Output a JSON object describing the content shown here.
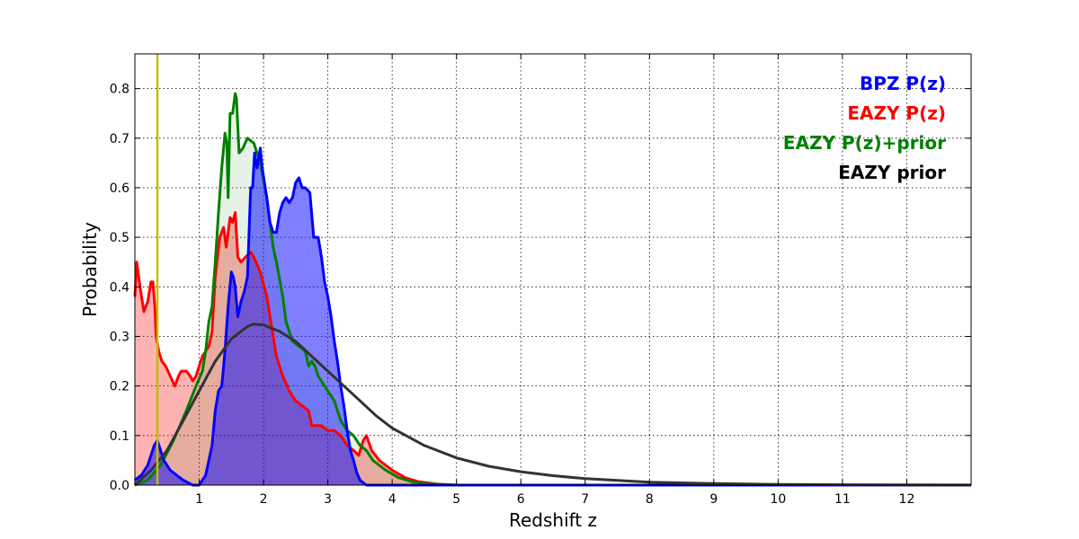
{
  "chart_data": {
    "type": "area",
    "title": "",
    "xlabel": "Redshift z",
    "ylabel": "Probability",
    "xlim": [
      0,
      13
    ],
    "ylim": [
      0,
      0.87
    ],
    "x_ticks": [
      1,
      2,
      3,
      4,
      5,
      6,
      7,
      8,
      9,
      10,
      11,
      12
    ],
    "y_ticks": [
      0.0,
      0.1,
      0.2,
      0.3,
      0.4,
      0.5,
      0.6,
      0.7,
      0.8
    ],
    "grid": true,
    "legend_position": "top-right",
    "vertical_line": {
      "x": 0.35,
      "color": "#bfbf00"
    },
    "series": [
      {
        "name": "EAZY P(z)",
        "color": "#ff0000",
        "fill": "rgba(255,0,0,0.3)",
        "points": [
          [
            0,
            0.38
          ],
          [
            0.03,
            0.45
          ],
          [
            0.08,
            0.4
          ],
          [
            0.14,
            0.35
          ],
          [
            0.2,
            0.37
          ],
          [
            0.25,
            0.41
          ],
          [
            0.28,
            0.41
          ],
          [
            0.31,
            0.36
          ],
          [
            0.33,
            0.3
          ],
          [
            0.37,
            0.27
          ],
          [
            0.42,
            0.25
          ],
          [
            0.48,
            0.24
          ],
          [
            0.55,
            0.22
          ],
          [
            0.62,
            0.2
          ],
          [
            0.68,
            0.22
          ],
          [
            0.72,
            0.23
          ],
          [
            0.8,
            0.23
          ],
          [
            0.86,
            0.22
          ],
          [
            0.9,
            0.21
          ],
          [
            0.95,
            0.22
          ],
          [
            1.0,
            0.24
          ],
          [
            1.05,
            0.26
          ],
          [
            1.1,
            0.27
          ],
          [
            1.15,
            0.28
          ],
          [
            1.2,
            0.31
          ],
          [
            1.25,
            0.42
          ],
          [
            1.32,
            0.5
          ],
          [
            1.38,
            0.52
          ],
          [
            1.42,
            0.48
          ],
          [
            1.48,
            0.54
          ],
          [
            1.52,
            0.53
          ],
          [
            1.56,
            0.55
          ],
          [
            1.6,
            0.46
          ],
          [
            1.65,
            0.45
          ],
          [
            1.72,
            0.46
          ],
          [
            1.8,
            0.47
          ],
          [
            1.85,
            0.46
          ],
          [
            1.95,
            0.43
          ],
          [
            2.05,
            0.38
          ],
          [
            2.15,
            0.3
          ],
          [
            2.2,
            0.26
          ],
          [
            2.3,
            0.22
          ],
          [
            2.4,
            0.19
          ],
          [
            2.5,
            0.17
          ],
          [
            2.6,
            0.16
          ],
          [
            2.7,
            0.15
          ],
          [
            2.75,
            0.12
          ],
          [
            2.8,
            0.12
          ],
          [
            2.9,
            0.12
          ],
          [
            3.0,
            0.11
          ],
          [
            3.1,
            0.11
          ],
          [
            3.2,
            0.1
          ],
          [
            3.3,
            0.08
          ],
          [
            3.4,
            0.07
          ],
          [
            3.48,
            0.06
          ],
          [
            3.55,
            0.09
          ],
          [
            3.6,
            0.1
          ],
          [
            3.68,
            0.07
          ],
          [
            3.8,
            0.05
          ],
          [
            4.0,
            0.03
          ],
          [
            4.2,
            0.015
          ],
          [
            4.4,
            0.007
          ],
          [
            4.7,
            0.002
          ],
          [
            5.0,
            0.0
          ],
          [
            13,
            0.0
          ]
        ]
      },
      {
        "name": "EAZY P(z)+prior",
        "color": "#008000",
        "fill": "rgba(0,128,0,0.1)",
        "points": [
          [
            0,
            0.0
          ],
          [
            0.2,
            0.01
          ],
          [
            0.4,
            0.04
          ],
          [
            0.6,
            0.09
          ],
          [
            0.8,
            0.15
          ],
          [
            0.95,
            0.2
          ],
          [
            1.05,
            0.23
          ],
          [
            1.1,
            0.27
          ],
          [
            1.15,
            0.33
          ],
          [
            1.2,
            0.36
          ],
          [
            1.25,
            0.45
          ],
          [
            1.3,
            0.55
          ],
          [
            1.35,
            0.64
          ],
          [
            1.4,
            0.71
          ],
          [
            1.43,
            0.69
          ],
          [
            1.45,
            0.58
          ],
          [
            1.48,
            0.75
          ],
          [
            1.52,
            0.75
          ],
          [
            1.56,
            0.79
          ],
          [
            1.58,
            0.78
          ],
          [
            1.62,
            0.67
          ],
          [
            1.68,
            0.68
          ],
          [
            1.75,
            0.7
          ],
          [
            1.85,
            0.69
          ],
          [
            1.95,
            0.65
          ],
          [
            2.05,
            0.58
          ],
          [
            2.15,
            0.48
          ],
          [
            2.2,
            0.45
          ],
          [
            2.3,
            0.38
          ],
          [
            2.35,
            0.33
          ],
          [
            2.45,
            0.29
          ],
          [
            2.55,
            0.28
          ],
          [
            2.65,
            0.27
          ],
          [
            2.7,
            0.24
          ],
          [
            2.75,
            0.25
          ],
          [
            2.8,
            0.24
          ],
          [
            2.85,
            0.22
          ],
          [
            2.95,
            0.2
          ],
          [
            3.05,
            0.18
          ],
          [
            3.1,
            0.17
          ],
          [
            3.15,
            0.15
          ],
          [
            3.2,
            0.13
          ],
          [
            3.3,
            0.11
          ],
          [
            3.4,
            0.1
          ],
          [
            3.5,
            0.08
          ],
          [
            3.6,
            0.07
          ],
          [
            3.7,
            0.05
          ],
          [
            3.9,
            0.03
          ],
          [
            4.1,
            0.015
          ],
          [
            4.3,
            0.007
          ],
          [
            4.5,
            0.003
          ],
          [
            4.8,
            0.001
          ],
          [
            5.0,
            0.0
          ],
          [
            13,
            0.0
          ]
        ]
      },
      {
        "name": "BPZ P(z)",
        "color": "#0000ff",
        "fill": "rgba(0,0,255,0.5)",
        "points": [
          [
            0,
            0.01
          ],
          [
            0.1,
            0.02
          ],
          [
            0.2,
            0.04
          ],
          [
            0.25,
            0.06
          ],
          [
            0.3,
            0.08
          ],
          [
            0.35,
            0.09
          ],
          [
            0.4,
            0.07
          ],
          [
            0.45,
            0.05
          ],
          [
            0.55,
            0.03
          ],
          [
            0.65,
            0.02
          ],
          [
            0.75,
            0.01
          ],
          [
            0.9,
            0.0
          ],
          [
            1.0,
            0.0
          ],
          [
            1.05,
            0.01
          ],
          [
            1.1,
            0.02
          ],
          [
            1.15,
            0.05
          ],
          [
            1.2,
            0.08
          ],
          [
            1.25,
            0.15
          ],
          [
            1.3,
            0.19
          ],
          [
            1.35,
            0.2
          ],
          [
            1.4,
            0.27
          ],
          [
            1.45,
            0.36
          ],
          [
            1.5,
            0.43
          ],
          [
            1.53,
            0.42
          ],
          [
            1.56,
            0.4
          ],
          [
            1.6,
            0.34
          ],
          [
            1.65,
            0.37
          ],
          [
            1.7,
            0.39
          ],
          [
            1.75,
            0.42
          ],
          [
            1.8,
            0.6
          ],
          [
            1.83,
            0.6
          ],
          [
            1.86,
            0.67
          ],
          [
            1.9,
            0.64
          ],
          [
            1.95,
            0.68
          ],
          [
            1.98,
            0.64
          ],
          [
            2.05,
            0.58
          ],
          [
            2.1,
            0.53
          ],
          [
            2.15,
            0.51
          ],
          [
            2.2,
            0.51
          ],
          [
            2.25,
            0.55
          ],
          [
            2.3,
            0.57
          ],
          [
            2.35,
            0.58
          ],
          [
            2.4,
            0.57
          ],
          [
            2.45,
            0.58
          ],
          [
            2.5,
            0.61
          ],
          [
            2.55,
            0.62
          ],
          [
            2.6,
            0.6
          ],
          [
            2.65,
            0.6
          ],
          [
            2.72,
            0.59
          ],
          [
            2.78,
            0.5
          ],
          [
            2.85,
            0.5
          ],
          [
            2.9,
            0.46
          ],
          [
            2.95,
            0.41
          ],
          [
            3.0,
            0.38
          ],
          [
            3.05,
            0.34
          ],
          [
            3.1,
            0.29
          ],
          [
            3.15,
            0.25
          ],
          [
            3.2,
            0.2
          ],
          [
            3.25,
            0.16
          ],
          [
            3.3,
            0.11
          ],
          [
            3.35,
            0.07
          ],
          [
            3.4,
            0.05
          ],
          [
            3.45,
            0.025
          ],
          [
            3.5,
            0.01
          ],
          [
            3.6,
            0.0
          ],
          [
            13,
            0.0
          ]
        ]
      },
      {
        "name": "EAZY prior",
        "color": "#333333",
        "fill": "none",
        "points": [
          [
            0,
            0.0
          ],
          [
            0.25,
            0.03
          ],
          [
            0.5,
            0.07
          ],
          [
            0.75,
            0.13
          ],
          [
            1.0,
            0.19
          ],
          [
            1.25,
            0.25
          ],
          [
            1.5,
            0.295
          ],
          [
            1.75,
            0.32
          ],
          [
            1.85,
            0.325
          ],
          [
            2.0,
            0.323
          ],
          [
            2.25,
            0.31
          ],
          [
            2.5,
            0.29
          ],
          [
            2.75,
            0.26
          ],
          [
            3.0,
            0.23
          ],
          [
            3.25,
            0.2
          ],
          [
            3.5,
            0.17
          ],
          [
            3.75,
            0.14
          ],
          [
            4.0,
            0.115
          ],
          [
            4.5,
            0.08
          ],
          [
            5.0,
            0.055
          ],
          [
            5.5,
            0.038
          ],
          [
            6.0,
            0.027
          ],
          [
            6.5,
            0.019
          ],
          [
            7.0,
            0.013
          ],
          [
            8.0,
            0.006
          ],
          [
            9.0,
            0.003
          ],
          [
            10.0,
            0.0015
          ],
          [
            11.0,
            0.0008
          ],
          [
            12.0,
            0.0004
          ],
          [
            13.0,
            0.0002
          ]
        ]
      }
    ],
    "legend": [
      {
        "label": "BPZ P(z)",
        "color": "#0000ff"
      },
      {
        "label": "EAZY P(z)",
        "color": "#ff0000"
      },
      {
        "label": "EAZY P(z)+prior",
        "color": "#008000"
      },
      {
        "label": "EAZY prior",
        "color": "#000000"
      }
    ]
  }
}
